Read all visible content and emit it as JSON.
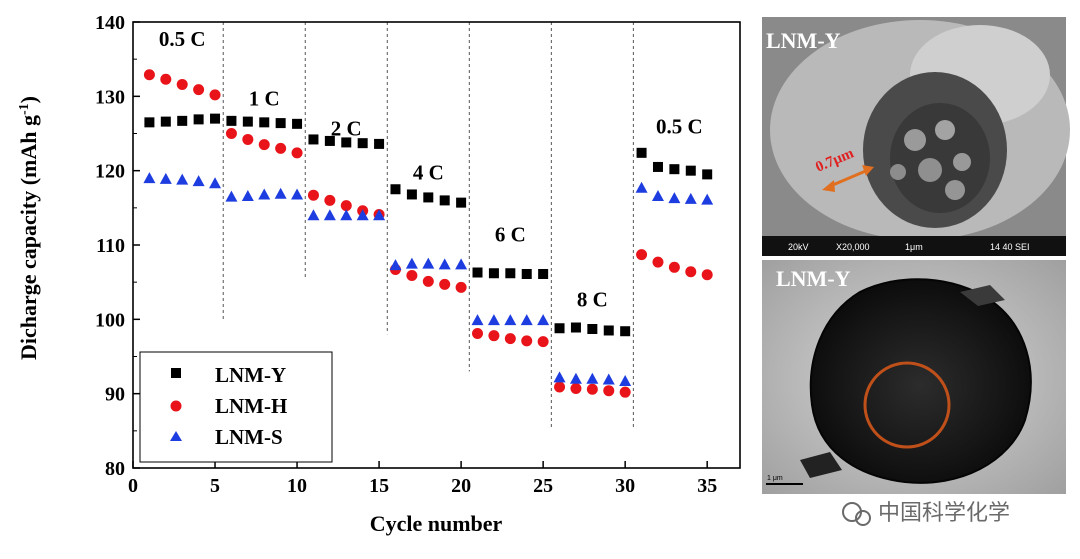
{
  "chart_data": {
    "type": "scatter",
    "ylabel": "Dicharge capacity (mAh g",
    "ylabel_sup": "-1",
    "ylabel_close": ")",
    "xlabel": "Cycle number",
    "xlim": [
      0,
      37
    ],
    "ylim": [
      80,
      140
    ],
    "xticks": [
      0,
      5,
      10,
      15,
      20,
      25,
      30,
      35
    ],
    "yticks": [
      80,
      90,
      100,
      110,
      120,
      130,
      140
    ],
    "x": [
      1,
      2,
      3,
      4,
      5,
      6,
      7,
      8,
      9,
      10,
      11,
      12,
      13,
      14,
      15,
      16,
      17,
      18,
      19,
      20,
      21,
      22,
      23,
      24,
      25,
      26,
      27,
      28,
      29,
      30,
      31,
      32,
      33,
      34,
      35
    ],
    "series": [
      {
        "name": "LNM-Y",
        "marker": "square",
        "color": "#000000",
        "values": [
          126.5,
          126.6,
          126.7,
          126.9,
          127.0,
          126.7,
          126.6,
          126.5,
          126.4,
          126.3,
          124.2,
          124.0,
          123.8,
          123.7,
          123.6,
          117.5,
          116.8,
          116.4,
          116.0,
          115.7,
          106.3,
          106.2,
          106.2,
          106.1,
          106.1,
          98.8,
          98.9,
          98.7,
          98.5,
          98.4,
          122.4,
          120.5,
          120.2,
          120.0,
          119.5
        ]
      },
      {
        "name": "LNM-H",
        "marker": "circle",
        "color": "#e8141a",
        "values": [
          132.9,
          132.3,
          131.6,
          130.9,
          130.2,
          125.0,
          124.2,
          123.5,
          123.0,
          122.4,
          116.7,
          116.0,
          115.3,
          114.6,
          114.1,
          106.7,
          105.9,
          105.1,
          104.7,
          104.3,
          98.1,
          97.8,
          97.4,
          97.1,
          97.0,
          90.9,
          90.7,
          90.6,
          90.4,
          90.2,
          108.7,
          107.7,
          107.0,
          106.4,
          106.0
        ]
      },
      {
        "name": "LNM-S",
        "marker": "triangle",
        "color": "#1e3de0",
        "values": [
          119.0,
          118.9,
          118.8,
          118.6,
          118.3,
          116.5,
          116.6,
          116.8,
          116.9,
          116.8,
          114.0,
          114.0,
          114.0,
          114.0,
          114.0,
          107.3,
          107.5,
          107.5,
          107.4,
          107.4,
          99.9,
          99.9,
          99.9,
          99.9,
          99.9,
          92.2,
          92.0,
          92.0,
          91.9,
          91.7,
          117.7,
          116.6,
          116.3,
          116.2,
          116.1
        ]
      }
    ],
    "dividers": [
      5.5,
      10.5,
      15.5,
      20.5,
      25.5,
      30.5
    ],
    "rate_labels": [
      {
        "text": "0.5 C",
        "x": 3.0,
        "y": 136.8
      },
      {
        "text": "1 C",
        "x": 8.0,
        "y": 128.8
      },
      {
        "text": "2 C",
        "x": 13.0,
        "y": 124.7
      },
      {
        "text": "4 C",
        "x": 18.0,
        "y": 118.8
      },
      {
        "text": "6 C",
        "x": 23.0,
        "y": 110.5
      },
      {
        "text": "8 C",
        "x": 28.0,
        "y": 101.7
      },
      {
        "text": "0.5 C",
        "x": 33.3,
        "y": 125.0
      }
    ],
    "legend_position": "bottom-left"
  },
  "micrographs": {
    "sem": {
      "label": "LNM-Y",
      "annotation": "0.7μm",
      "footer": [
        "20kV",
        "X20,000",
        "1μm",
        "14 40 SEI"
      ]
    },
    "tem": {
      "label": "LNM-Y",
      "scale_label": "1 μm"
    }
  },
  "watermark": {
    "text": "中国科学化学"
  }
}
